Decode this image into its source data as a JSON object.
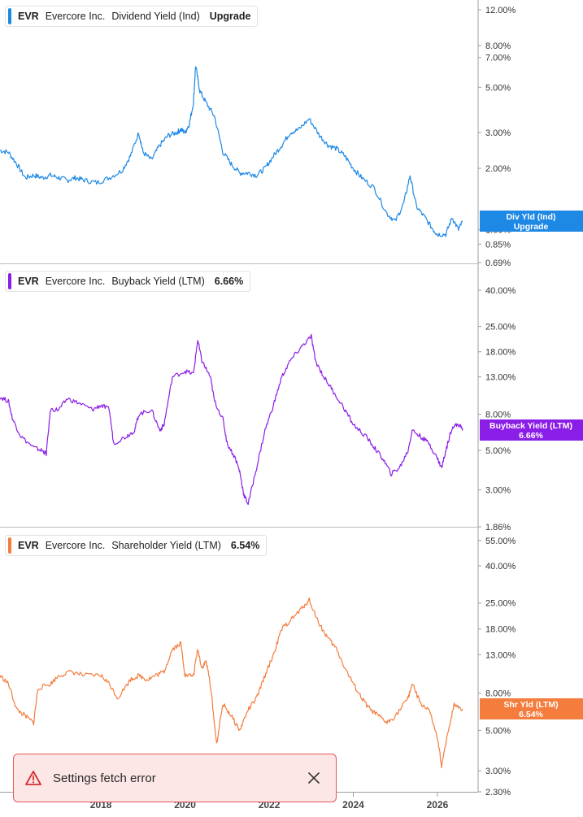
{
  "panels": [
    {
      "ticker": "EVR",
      "company": "Evercore Inc.",
      "metric": "Dividend Yield (Ind)",
      "value": "Upgrade",
      "color": "#1e88e5",
      "ticks": [
        "12.00%",
        "8.00%",
        "7.00%",
        "5.00%",
        "3.00%",
        "2.00%",
        "1.00%",
        "0.85%",
        "0.69%"
      ],
      "badge": [
        "Div Yld (Ind)",
        "Upgrade"
      ]
    },
    {
      "ticker": "EVR",
      "company": "Evercore Inc.",
      "metric": "Buyback Yield (LTM)",
      "value": "6.66%",
      "color": "#8b1ee6",
      "ticks": [
        "40.00%",
        "25.00%",
        "18.00%",
        "13.00%",
        "8.00%",
        "5.00%",
        "3.00%",
        "1.86%"
      ],
      "badge": [
        "Buyback Yield (LTM)",
        "6.66%"
      ]
    },
    {
      "ticker": "EVR",
      "company": "Evercore Inc.",
      "metric": "Shareholder Yield (LTM)",
      "value": "6.54%",
      "color": "#f47c3c",
      "ticks": [
        "55.00%",
        "40.00%",
        "25.00%",
        "18.00%",
        "13.00%",
        "8.00%",
        "5.00%",
        "3.00%",
        "2.30%"
      ],
      "badge": [
        "Shr Yld (LTM)",
        "6.54%"
      ]
    }
  ],
  "x_axis_labels": [
    "2018",
    "2020",
    "2022",
    "2024",
    "2026"
  ],
  "toast": {
    "message": "Settings fetch error"
  },
  "icons": {
    "warning": "warning-triangle-icon",
    "close": "close-icon"
  },
  "chart_data": [
    {
      "type": "line",
      "y_scale": "log",
      "series": [
        {
          "values": [
            [
              2015.6,
              2.45
            ],
            [
              2015.8,
              2.4
            ],
            [
              2016.0,
              2.1
            ],
            [
              2016.2,
              1.8
            ],
            [
              2016.4,
              1.85
            ],
            [
              2016.6,
              1.8
            ],
            [
              2016.8,
              1.85
            ],
            [
              2017.0,
              1.8
            ],
            [
              2017.2,
              1.75
            ],
            [
              2017.4,
              1.8
            ],
            [
              2017.6,
              1.75
            ],
            [
              2017.9,
              1.7
            ],
            [
              2018.2,
              1.8
            ],
            [
              2018.5,
              1.95
            ],
            [
              2018.7,
              2.3
            ],
            [
              2018.9,
              3.0
            ],
            [
              2019.0,
              2.4
            ],
            [
              2019.2,
              2.2
            ],
            [
              2019.4,
              2.6
            ],
            [
              2019.6,
              2.9
            ],
            [
              2019.8,
              3.0
            ],
            [
              2019.9,
              3.1
            ],
            [
              2020.0,
              3.0
            ],
            [
              2020.1,
              3.3
            ],
            [
              2020.2,
              4.2
            ],
            [
              2020.25,
              6.4
            ],
            [
              2020.35,
              4.8
            ],
            [
              2020.5,
              4.2
            ],
            [
              2020.7,
              3.6
            ],
            [
              2020.9,
              2.4
            ],
            [
              2021.1,
              2.1
            ],
            [
              2021.3,
              1.9
            ],
            [
              2021.5,
              1.9
            ],
            [
              2021.7,
              1.85
            ],
            [
              2021.9,
              2.0
            ],
            [
              2022.1,
              2.3
            ],
            [
              2022.3,
              2.6
            ],
            [
              2022.5,
              3.0
            ],
            [
              2022.7,
              3.1
            ],
            [
              2022.95,
              3.5
            ],
            [
              2023.2,
              2.9
            ],
            [
              2023.4,
              2.6
            ],
            [
              2023.6,
              2.5
            ],
            [
              2023.8,
              2.3
            ],
            [
              2024.0,
              2.0
            ],
            [
              2024.2,
              1.8
            ],
            [
              2024.5,
              1.6
            ],
            [
              2024.8,
              1.2
            ],
            [
              2025.0,
              1.1
            ],
            [
              2025.2,
              1.35
            ],
            [
              2025.35,
              1.85
            ],
            [
              2025.5,
              1.3
            ],
            [
              2025.7,
              1.15
            ],
            [
              2025.9,
              1.0
            ],
            [
              2026.0,
              0.95
            ],
            [
              2026.2,
              0.95
            ],
            [
              2026.35,
              1.15
            ],
            [
              2026.5,
              1.0
            ],
            [
              2026.6,
              1.1
            ]
          ]
        }
      ],
      "ylim": [
        0.69,
        12.0
      ],
      "xlim": [
        2015.6,
        2026.6
      ]
    },
    {
      "type": "line",
      "y_scale": "log",
      "series": [
        {
          "values": [
            [
              2015.6,
              10.0
            ],
            [
              2015.8,
              9.5
            ],
            [
              2015.9,
              7.5
            ],
            [
              2016.1,
              6.0
            ],
            [
              2016.4,
              5.2
            ],
            [
              2016.6,
              5.0
            ],
            [
              2016.7,
              4.8
            ],
            [
              2016.8,
              8.5
            ],
            [
              2017.0,
              8.5
            ],
            [
              2017.2,
              9.8
            ],
            [
              2017.5,
              9.2
            ],
            [
              2017.8,
              8.5
            ],
            [
              2018.0,
              9.0
            ],
            [
              2018.2,
              8.5
            ],
            [
              2018.3,
              5.5
            ],
            [
              2018.6,
              6.0
            ],
            [
              2018.8,
              6.5
            ],
            [
              2018.9,
              8.0
            ],
            [
              2019.2,
              8.5
            ],
            [
              2019.4,
              6.5
            ],
            [
              2019.5,
              7.0
            ],
            [
              2019.7,
              13.0
            ],
            [
              2020.0,
              14.0
            ],
            [
              2020.2,
              13.5
            ],
            [
              2020.3,
              21.0
            ],
            [
              2020.4,
              16.0
            ],
            [
              2020.6,
              13.0
            ],
            [
              2020.7,
              9.5
            ],
            [
              2020.9,
              7.5
            ],
            [
              2021.0,
              5.5
            ],
            [
              2021.2,
              4.5
            ],
            [
              2021.3,
              3.8
            ],
            [
              2021.4,
              2.8
            ],
            [
              2021.5,
              2.5
            ],
            [
              2021.7,
              4.0
            ],
            [
              2021.9,
              6.5
            ],
            [
              2022.1,
              9.0
            ],
            [
              2022.3,
              13.0
            ],
            [
              2022.5,
              16.0
            ],
            [
              2022.75,
              19.0
            ],
            [
              2023.0,
              22.0
            ],
            [
              2023.1,
              16.0
            ],
            [
              2023.3,
              13.0
            ],
            [
              2023.5,
              11.0
            ],
            [
              2023.8,
              8.5
            ],
            [
              2024.0,
              7.0
            ],
            [
              2024.3,
              6.0
            ],
            [
              2024.5,
              5.2
            ],
            [
              2024.7,
              4.5
            ],
            [
              2024.9,
              3.7
            ],
            [
              2025.1,
              4.0
            ],
            [
              2025.3,
              5.0
            ],
            [
              2025.4,
              6.5
            ],
            [
              2025.6,
              6.0
            ],
            [
              2025.8,
              5.5
            ],
            [
              2026.0,
              4.5
            ],
            [
              2026.1,
              4.0
            ],
            [
              2026.2,
              5.0
            ],
            [
              2026.35,
              6.8
            ],
            [
              2026.5,
              7.0
            ],
            [
              2026.6,
              6.66
            ]
          ]
        }
      ],
      "ylim": [
        1.86,
        40.0
      ],
      "xlim": [
        2015.6,
        2026.6
      ]
    },
    {
      "type": "line",
      "y_scale": "log",
      "series": [
        {
          "values": [
            [
              2015.6,
              10.0
            ],
            [
              2015.8,
              9.0
            ],
            [
              2016.0,
              6.5
            ],
            [
              2016.2,
              6.0
            ],
            [
              2016.4,
              5.5
            ],
            [
              2016.5,
              8.5
            ],
            [
              2016.8,
              9.0
            ],
            [
              2017.0,
              10.0
            ],
            [
              2017.3,
              10.5
            ],
            [
              2017.6,
              10.0
            ],
            [
              2018.0,
              10.0
            ],
            [
              2018.2,
              9.0
            ],
            [
              2018.4,
              7.5
            ],
            [
              2018.7,
              9.5
            ],
            [
              2018.9,
              10.0
            ],
            [
              2019.1,
              9.5
            ],
            [
              2019.3,
              10.0
            ],
            [
              2019.5,
              10.5
            ],
            [
              2019.7,
              14.0
            ],
            [
              2019.9,
              15.0
            ],
            [
              2020.0,
              10.0
            ],
            [
              2020.2,
              10.0
            ],
            [
              2020.3,
              14.0
            ],
            [
              2020.4,
              11.0
            ],
            [
              2020.5,
              12.0
            ],
            [
              2020.6,
              9.0
            ],
            [
              2020.75,
              4.2
            ],
            [
              2020.9,
              7.0
            ],
            [
              2021.1,
              6.0
            ],
            [
              2021.3,
              5.0
            ],
            [
              2021.5,
              6.5
            ],
            [
              2021.7,
              7.5
            ],
            [
              2021.9,
              10.0
            ],
            [
              2022.1,
              13.0
            ],
            [
              2022.3,
              18.0
            ],
            [
              2022.5,
              20.0
            ],
            [
              2022.75,
              23.0
            ],
            [
              2022.95,
              26.0
            ],
            [
              2023.2,
              19.0
            ],
            [
              2023.4,
              16.0
            ],
            [
              2023.6,
              14.0
            ],
            [
              2023.8,
              11.0
            ],
            [
              2024.0,
              9.0
            ],
            [
              2024.2,
              7.5
            ],
            [
              2024.4,
              6.5
            ],
            [
              2024.6,
              6.0
            ],
            [
              2024.8,
              5.5
            ],
            [
              2025.0,
              6.0
            ],
            [
              2025.3,
              7.5
            ],
            [
              2025.4,
              9.0
            ],
            [
              2025.6,
              7.0
            ],
            [
              2025.8,
              6.5
            ],
            [
              2026.0,
              4.5
            ],
            [
              2026.1,
              3.2
            ],
            [
              2026.3,
              5.5
            ],
            [
              2026.4,
              7.0
            ],
            [
              2026.6,
              6.54
            ]
          ]
        }
      ],
      "ylim": [
        2.3,
        55.0
      ],
      "xlim": [
        2015.6,
        2026.6
      ]
    }
  ]
}
